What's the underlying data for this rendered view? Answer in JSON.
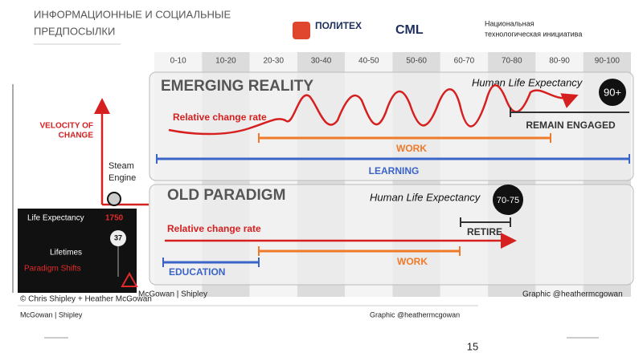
{
  "header": {
    "title_lines": [
      "ИНФОРМАЦИОННЫЕ И СОЦИАЛЬНЫЕ",
      "ПРЕДПОСЫЛКИ"
    ],
    "logo_politekh": "ПОЛИТЕХ",
    "logo_cml": "CML",
    "nti_lines": [
      "Национальная",
      "технологическая инициатива"
    ]
  },
  "decades": [
    "0-10",
    "10-20",
    "20-30",
    "30-40",
    "40-50",
    "50-60",
    "60-70",
    "70-80",
    "80-90",
    "90-100"
  ],
  "emerging": {
    "title": "EMERGING REALITY",
    "life_expectancy": "Human Life Expectancy",
    "badge": "90+",
    "change": "Relative change rate",
    "remain": "REMAIN ENGAGED",
    "work": "WORK",
    "learning": "LEARNING"
  },
  "old": {
    "title": "OLD PARADIGM",
    "life_expectancy": "Human Life Expectancy",
    "badge": "70-75",
    "change": "Relative change rate",
    "retire": "RETIRE",
    "work": "WORK",
    "education": "EDUCATION"
  },
  "left": {
    "velocity_lines": [
      "VELOCITY OF",
      "CHANGE"
    ],
    "steam_lines": [
      "Steam",
      "Engine"
    ],
    "life_expectancy": "Life Expectancy",
    "year": "1750",
    "age": "37",
    "lifetimes": "Lifetimes",
    "paradigm": "Paradigm Shifts"
  },
  "credits": {
    "copyright": "© Chris Shipley + Heather McGowan",
    "mcgowan_top": "McGowan | Shipley",
    "graphic_top": "Graphic @heathermcgowan",
    "mcgowan_bottom": "McGowan | Shipley",
    "graphic_bottom": "Graphic @heathermcgowan"
  },
  "page_number": "15"
}
